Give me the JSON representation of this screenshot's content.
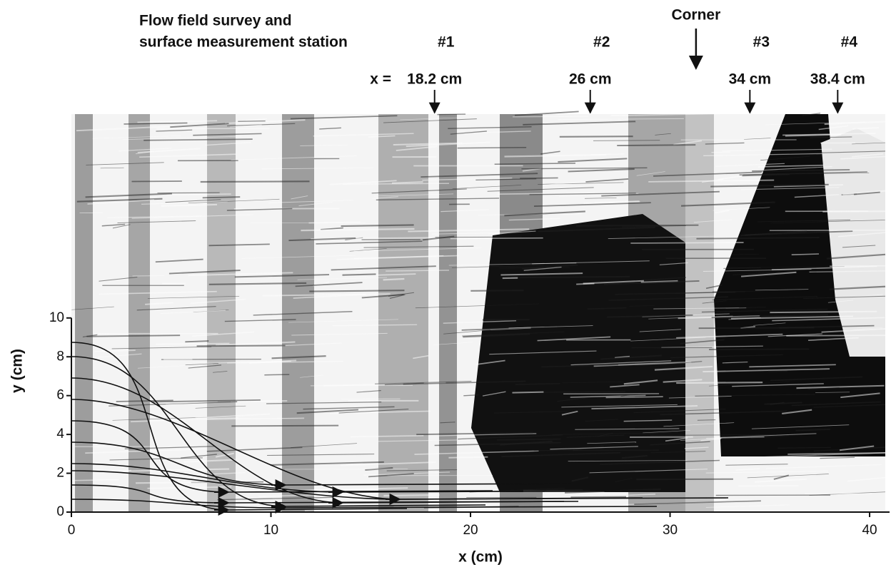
{
  "chart_data": {
    "type": "annotated-image",
    "heading": [
      "Flow field survey and",
      "surface measurement station"
    ],
    "x_prefix": "x =",
    "stations": [
      {
        "label": "#1",
        "position_label": "18.2 cm",
        "x": 18.2
      },
      {
        "label": "#2",
        "position_label": "26 cm",
        "x": 26
      },
      {
        "label": "#3",
        "position_label": "34 cm",
        "x": 34
      },
      {
        "label": "#4",
        "position_label": "38.4 cm",
        "x": 38.4
      }
    ],
    "corner": {
      "label": "Corner",
      "x": 31.3
    },
    "xlabel": "x (cm)",
    "ylabel": "y (cm)",
    "xlim": [
      0,
      41
    ],
    "ylim": [
      0,
      20.5
    ],
    "xticks": [
      0,
      10,
      20,
      30,
      40
    ],
    "yticks": [
      0,
      2,
      4,
      6,
      8,
      10
    ]
  }
}
